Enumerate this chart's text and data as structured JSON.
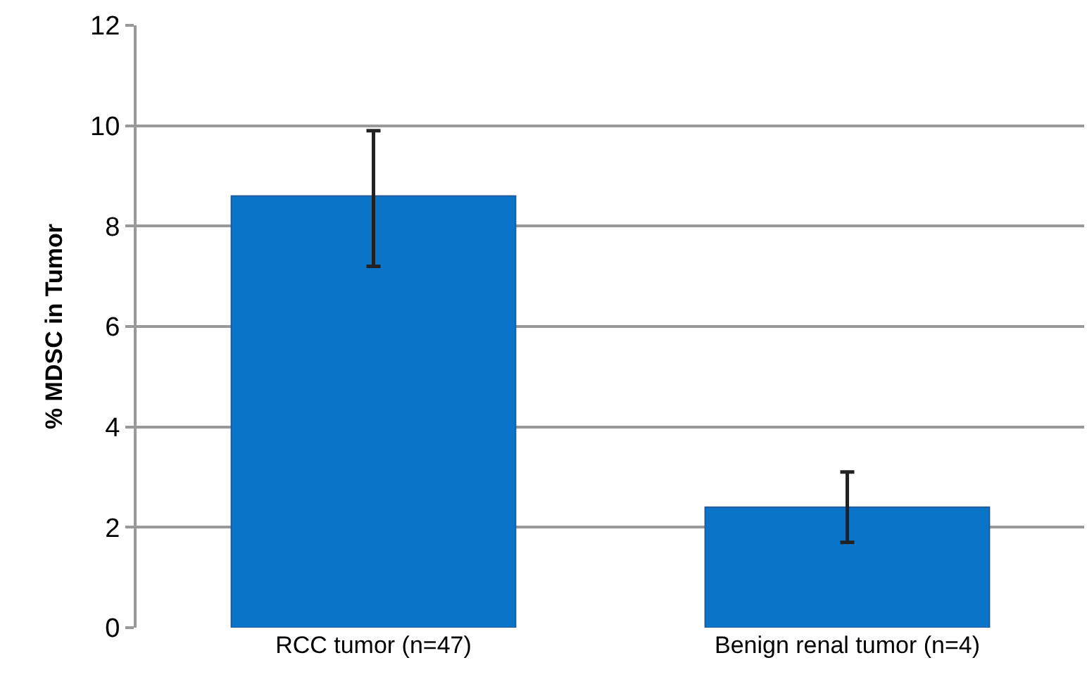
{
  "chart_data": {
    "type": "bar",
    "ylabel": "% MDSC in Tumor",
    "categories": [
      "RCC tumor (n=47)",
      "Benign renal tumor (n=4)"
    ],
    "values": [
      8.6,
      2.4
    ],
    "errors": [
      [
        7.2,
        9.9
      ],
      [
        1.7,
        3.1
      ]
    ],
    "color": "#0a74c8",
    "ylim": [
      0,
      12
    ],
    "yticks": [
      0,
      2,
      4,
      6,
      8,
      10,
      12
    ],
    "grid": "y"
  }
}
